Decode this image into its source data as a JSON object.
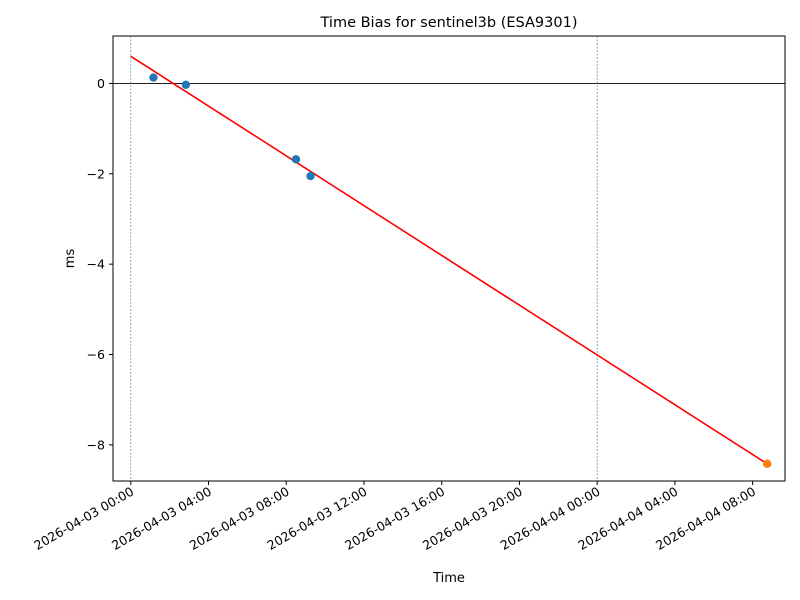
{
  "chart_data": {
    "type": "scatter",
    "title": "Time Bias for sentinel3b (ESA9301)",
    "xlabel": "Time",
    "ylabel": "ms",
    "x_range": [
      "2026-04-02 23:05",
      "2026-04-04 09:40"
    ],
    "ylim": [
      -8.8,
      1.05
    ],
    "x_ticks": [
      "2026-04-03 00:00",
      "2026-04-03 04:00",
      "2026-04-03 08:00",
      "2026-04-03 12:00",
      "2026-04-03 16:00",
      "2026-04-03 20:00",
      "2026-04-04 00:00",
      "2026-04-04 04:00",
      "2026-04-04 08:00"
    ],
    "y_ticks": [
      0,
      -2,
      -4,
      -6,
      -8
    ],
    "grid": false,
    "series": [
      {
        "type": "scatter",
        "color": "#1f77b4",
        "points": [
          {
            "x": "2026-04-03 01:10",
            "y": 0.13
          },
          {
            "x": "2026-04-03 02:50",
            "y": -0.03
          },
          {
            "x": "2026-04-03 08:30",
            "y": -1.68
          },
          {
            "x": "2026-04-03 09:15",
            "y": -2.05
          }
        ]
      },
      {
        "type": "scatter",
        "color": "#ff7f0e",
        "points": [
          {
            "x": "2026-04-04 08:45",
            "y": -8.42
          }
        ]
      },
      {
        "type": "line",
        "color": "#ff0000",
        "points": [
          {
            "x": "2026-04-03 00:00",
            "y": 0.6
          },
          {
            "x": "2026-04-04 08:45",
            "y": -8.42
          }
        ]
      }
    ],
    "reference_lines": [
      {
        "orientation": "horizontal",
        "y": 0,
        "color": "#000000",
        "style": "solid"
      },
      {
        "orientation": "vertical",
        "x": "2026-04-03 00:00",
        "color": "#1f77b4",
        "style": "dashed"
      },
      {
        "orientation": "vertical",
        "x": "2026-04-04 00:00",
        "color": "#1f77b4",
        "style": "dashed"
      }
    ]
  }
}
